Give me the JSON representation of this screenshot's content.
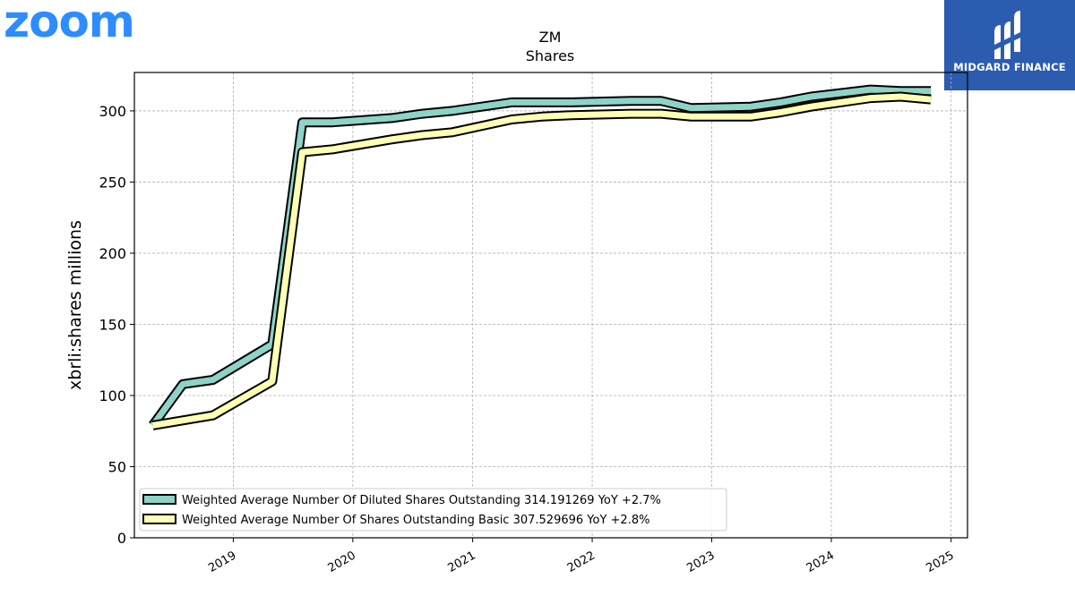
{
  "logos": {
    "left": {
      "text": "zoom",
      "color": "#2d8cff"
    },
    "right": {
      "text": "MIDGARD FINANCE",
      "background": "#2b5caf"
    }
  },
  "chart_data": {
    "type": "line",
    "title": "ZM",
    "subtitle": "Shares",
    "xlabel": "",
    "ylabel": "xbrli:shares millions",
    "xlim": [
      "2018-03-05",
      "2025-02-20"
    ],
    "ylim": [
      0,
      327
    ],
    "yticks": [
      0,
      50,
      100,
      150,
      200,
      250,
      300
    ],
    "xticks": [
      "2019",
      "2020",
      "2021",
      "2022",
      "2023",
      "2024",
      "2025"
    ],
    "grid": true,
    "legend_position": "lower-left",
    "series": [
      {
        "name": "Weighted Average Number Of Diluted Shares Outstanding",
        "legend_label": "Weighted Average Number Of Diluted Shares Outstanding  314.191269 YoY +2.7%",
        "color": "#8dd3c7",
        "points": [
          [
            "2018-04-30",
            79
          ],
          [
            "2018-07-31",
            108
          ],
          [
            "2018-10-31",
            111
          ],
          [
            "2019-04-30",
            136
          ],
          [
            "2019-07-31",
            292
          ],
          [
            "2019-10-31",
            292
          ],
          [
            "2020-04-30",
            295
          ],
          [
            "2020-07-31",
            298
          ],
          [
            "2020-10-31",
            300
          ],
          [
            "2021-04-30",
            306
          ],
          [
            "2021-07-31",
            306
          ],
          [
            "2021-10-31",
            306
          ],
          [
            "2022-04-30",
            307
          ],
          [
            "2022-07-31",
            307
          ],
          [
            "2022-10-31",
            302
          ],
          [
            "2023-04-30",
            303
          ],
          [
            "2023-07-31",
            306
          ],
          [
            "2023-10-31",
            310
          ],
          [
            "2024-04-30",
            315
          ],
          [
            "2024-07-31",
            314
          ],
          [
            "2024-10-31",
            314
          ]
        ]
      },
      {
        "name": "Weighted Average Number Of Shares Outstanding Basic",
        "legend_label": "Weighted Average Number Of Shares Outstanding Basic  307.529696 YoY +2.8%",
        "color": "#ffffb3",
        "points": [
          [
            "2018-04-30",
            79
          ],
          [
            "2018-10-31",
            86
          ],
          [
            "2019-04-30",
            110
          ],
          [
            "2019-07-31",
            271
          ],
          [
            "2019-10-31",
            273
          ],
          [
            "2020-04-30",
            280
          ],
          [
            "2020-07-31",
            283
          ],
          [
            "2020-10-31",
            285
          ],
          [
            "2021-04-30",
            294
          ],
          [
            "2021-07-31",
            296
          ],
          [
            "2021-10-31",
            297
          ],
          [
            "2022-04-30",
            298
          ],
          [
            "2022-07-31",
            298
          ],
          [
            "2022-10-31",
            296
          ],
          [
            "2023-04-30",
            296
          ],
          [
            "2023-07-31",
            299
          ],
          [
            "2023-10-31",
            303
          ],
          [
            "2024-04-30",
            309
          ],
          [
            "2024-07-31",
            310
          ],
          [
            "2024-10-31",
            308
          ]
        ]
      }
    ]
  }
}
